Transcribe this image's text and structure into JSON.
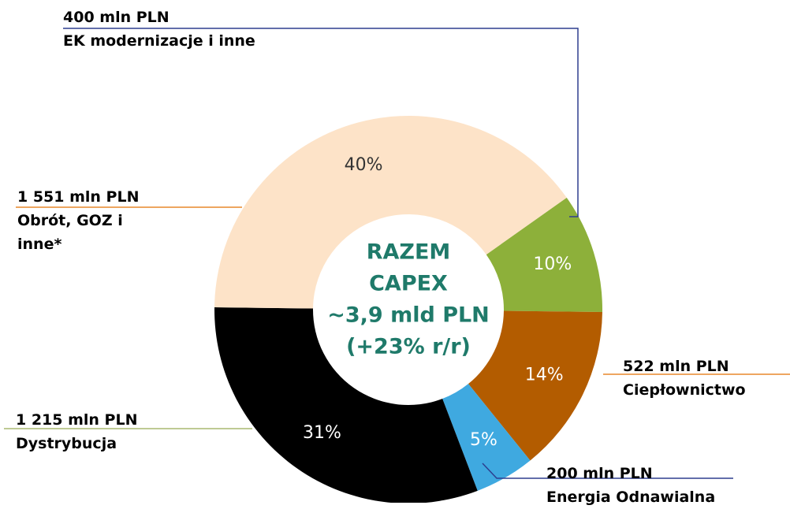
{
  "chart_data": {
    "type": "donut",
    "categories": [
      "EK modernizacje i inne",
      "Ciepłownictwo",
      "Energia Odnawialna",
      "Dystrybucja",
      "Obrót, GOZ i inne*"
    ],
    "amount_labels": [
      "400 mln PLN",
      "522 mln PLN",
      "200 mln PLN",
      "1 215 mln PLN",
      "1 551 mln PLN"
    ],
    "values": [
      10,
      14,
      5,
      31,
      40
    ],
    "value_labels": [
      "10%",
      "14%",
      "5%",
      "31%",
      "40%"
    ],
    "colors": [
      "#8db03a",
      "#b35c00",
      "#3fa9e0",
      "#000000",
      "#fde3c8"
    ],
    "label_colors": [
      "#ffffff",
      "#ffffff",
      "#ffffff",
      "#ffffff",
      "#333333"
    ],
    "leader_colors": [
      "#2e3f8f",
      "#e8892b",
      "#2e3f8f",
      "#a8b870",
      "#e8892b"
    ],
    "center_text": [
      "RAZEM",
      "CAPEX",
      "~3,9 mld PLN",
      "(+23% r/r)"
    ]
  }
}
